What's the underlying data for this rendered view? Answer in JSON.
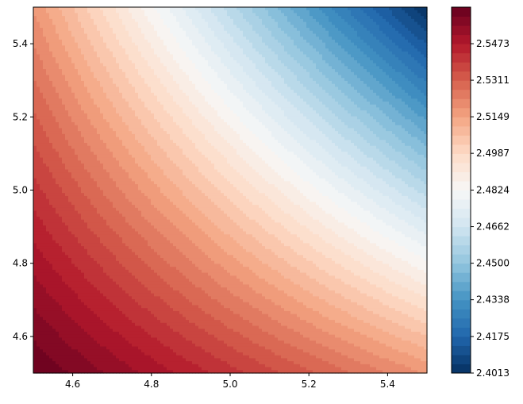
{
  "chart_data": {
    "type": "contourf",
    "colormap": "RdBu_r",
    "x_range": [
      4.5,
      5.5
    ],
    "y_range": [
      4.5,
      5.5
    ],
    "x_ticks": [
      "4.6",
      "4.8",
      "5.0",
      "5.2",
      "5.4"
    ],
    "y_ticks": [
      "4.6",
      "4.8",
      "5.0",
      "5.2",
      "5.4"
    ],
    "z_min": 2.4013,
    "z_max": 2.5635,
    "levels": 40,
    "colorbar_ticks": [
      "2.4013",
      "2.4175",
      "2.4338",
      "2.4500",
      "2.4662",
      "2.4824",
      "2.4987",
      "2.5149",
      "2.5311",
      "2.5473"
    ],
    "colorbar_tick_values": [
      2.4013,
      2.4175,
      2.4338,
      2.45,
      2.4662,
      2.4824,
      2.4987,
      2.5149,
      2.5311,
      2.5473
    ],
    "grid": false,
    "title": "",
    "xlabel": "",
    "ylabel": ""
  }
}
